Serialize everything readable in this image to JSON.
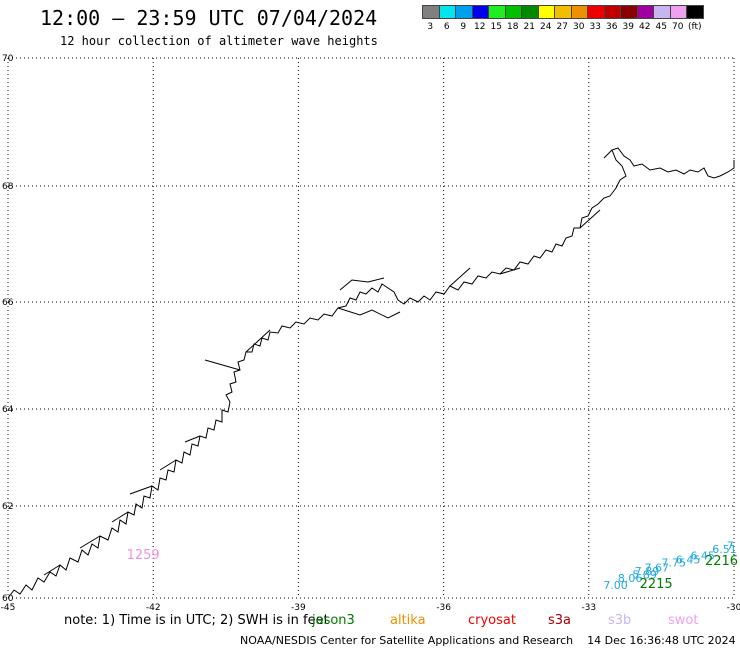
{
  "header": {
    "title": "12:00 – 23:59 UTC 07/04/2024",
    "subtitle": "12 hour collection of altimeter wave heights"
  },
  "colorbar": {
    "unit": "(ft)",
    "entries": [
      {
        "label": "3",
        "color": "#808080"
      },
      {
        "label": "6",
        "color": "#00e5ee"
      },
      {
        "label": "9",
        "color": "#009fee"
      },
      {
        "label": "12",
        "color": "#0000ee"
      },
      {
        "label": "15",
        "color": "#20ee20"
      },
      {
        "label": "18",
        "color": "#00c000"
      },
      {
        "label": "21",
        "color": "#008a00"
      },
      {
        "label": "24",
        "color": "#ffff00"
      },
      {
        "label": "27",
        "color": "#f0c000"
      },
      {
        "label": "30",
        "color": "#f09000"
      },
      {
        "label": "33",
        "color": "#ee0000"
      },
      {
        "label": "36",
        "color": "#c00000"
      },
      {
        "label": "39",
        "color": "#880000"
      },
      {
        "label": "42",
        "color": "#a000a0"
      },
      {
        "label": "45",
        "color": "#c8b4f0"
      },
      {
        "label": "70",
        "color": "#f0a0f0"
      },
      {
        "label": "",
        "color": "#000000"
      }
    ]
  },
  "map": {
    "lon_ticks": [
      "-45",
      "-42",
      "-39",
      "-36",
      "-33",
      "-30"
    ],
    "lat_ticks": [
      "60",
      "62",
      "64",
      "66",
      "68",
      "70"
    ],
    "track_labels": [
      {
        "text": "1259",
        "color": "#f090e0",
        "lon": -42.55,
        "lat": 60.85
      },
      {
        "text": "2215",
        "color": "#007a00",
        "lon": -31.95,
        "lat": 60.22
      },
      {
        "text": "2216",
        "color": "#007a00",
        "lon": -30.6,
        "lat": 60.72
      }
    ],
    "wave_values": [
      {
        "text": "7.00",
        "color": "#20a8e0",
        "lon": -32.7,
        "lat": 60.2
      },
      {
        "text": "8.06",
        "color": "#20a8e0",
        "lon": -32.4,
        "lat": 60.35
      },
      {
        "text": "5.89",
        "color": "#20a8e0",
        "lon": -32.1,
        "lat": 60.42
      },
      {
        "text": "7.89",
        "color": "#20a8e0",
        "lon": -32.05,
        "lat": 60.5
      },
      {
        "text": "7.67",
        "color": "#20a8e0",
        "lon": -31.85,
        "lat": 60.58
      },
      {
        "text": "7.75",
        "color": "#20a8e0",
        "lon": -31.5,
        "lat": 60.68
      },
      {
        "text": "6.45",
        "color": "#20a8e0",
        "lon": -31.2,
        "lat": 60.75
      },
      {
        "text": "6.45",
        "color": "#20a8e0",
        "lon": -30.9,
        "lat": 60.84
      },
      {
        "text": "6.51",
        "color": "#20a8e0",
        "lon": -30.45,
        "lat": 60.98
      },
      {
        "text": "7",
        "color": "#20a8e0",
        "lon": -30.15,
        "lat": 61.05
      }
    ]
  },
  "footer": {
    "note": "note: 1) Time is in UTC; 2) SWH is in feet",
    "satellites": [
      {
        "name": "jason3",
        "color": "#007a00"
      },
      {
        "name": "altika",
        "color": "#f09000"
      },
      {
        "name": "cryosat",
        "color": "#ee0000"
      },
      {
        "name": "s3a",
        "color": "#a00000"
      },
      {
        "name": "s3b",
        "color": "#c8b4f0"
      },
      {
        "name": "swot",
        "color": "#f0a0f0"
      }
    ],
    "credit": "NOAA/NESDIS Center for Satellite Applications and Research",
    "timestamp": "14 Dec 16:36:48 UTC 2024"
  }
}
